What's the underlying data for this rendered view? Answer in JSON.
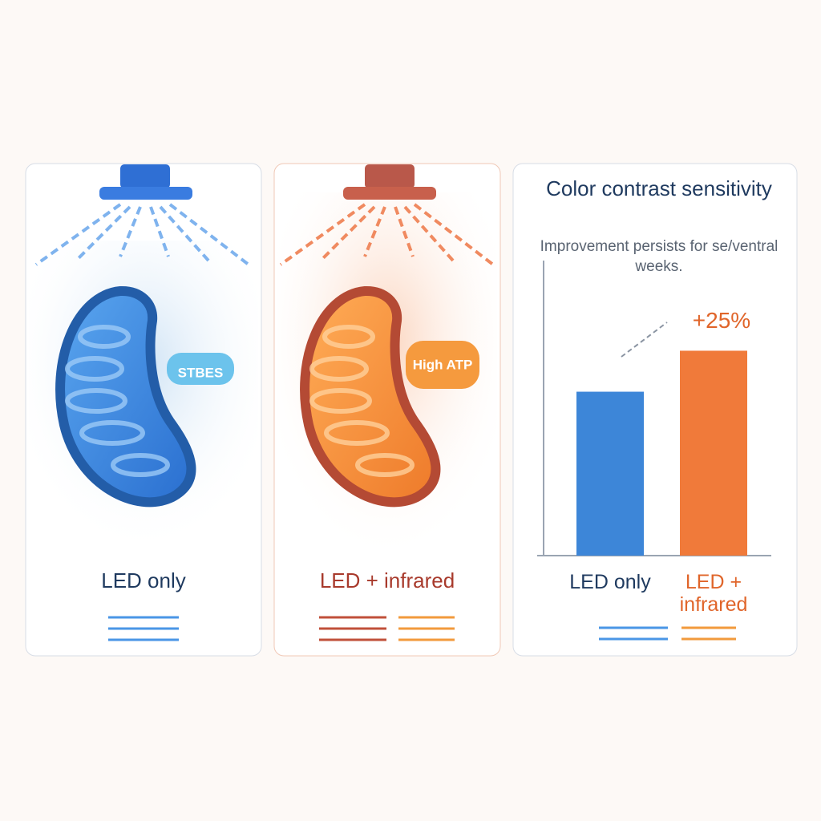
{
  "panels": [
    {
      "label": "LED only",
      "badge": "STBES"
    },
    {
      "label": "LED + infrared",
      "badge": "High ATP"
    }
  ],
  "chart_data": {
    "type": "bar",
    "title": "Color contrast sensitivity",
    "subtitle": "Improvement persists for se/ventral weeks.",
    "categories": [
      "LED only",
      "LED + infrared"
    ],
    "values": [
      100,
      125
    ],
    "colors": [
      "#3d86d8",
      "#f07a3a"
    ],
    "label_colors": [
      "#1f3a5f",
      "#e0652a"
    ],
    "ylim": [
      0,
      180
    ],
    "annotation": "+25%"
  }
}
